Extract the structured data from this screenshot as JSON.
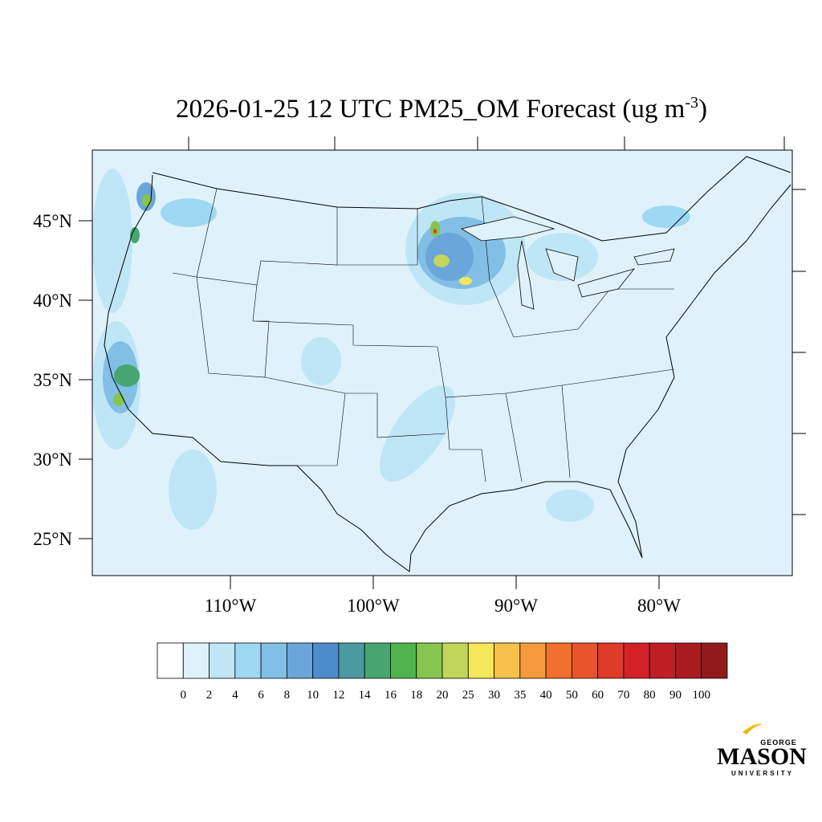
{
  "title": {
    "main": "2026-01-25 12 UTC PM25_OM Forecast (ug m",
    "superscript": "-3",
    "close": ")"
  },
  "map": {
    "lat_ticks": [
      {
        "value": 45,
        "label": "45°N"
      },
      {
        "value": 40,
        "label": "40°N"
      },
      {
        "value": 35,
        "label": "35°N"
      },
      {
        "value": 30,
        "label": "30°N"
      },
      {
        "value": 25,
        "label": "25°N"
      }
    ],
    "lon_ticks": [
      {
        "value": -110,
        "label": "110°W"
      },
      {
        "value": -100,
        "label": "100°W"
      },
      {
        "value": -90,
        "label": "90°W"
      },
      {
        "value": -80,
        "label": "80°W"
      }
    ]
  },
  "colorbar": {
    "levels": [
      0,
      2,
      4,
      6,
      8,
      10,
      12,
      14,
      16,
      18,
      20,
      25,
      30,
      35,
      40,
      50,
      60,
      70,
      80,
      90,
      100
    ],
    "colors": [
      "#ffffff",
      "#dff2fb",
      "#bfe6f7",
      "#9fd8f3",
      "#82bfe6",
      "#6aa6da",
      "#4d8ccb",
      "#4b9a9f",
      "#45a672",
      "#4db34a",
      "#87c54e",
      "#c2d65a",
      "#f6e65a",
      "#f7c04a",
      "#f59a3c",
      "#f26f2d",
      "#ea542a",
      "#e03a28",
      "#d42128",
      "#bf1e24",
      "#aa1b20",
      "#921a1b"
    ]
  },
  "logo": {
    "top": "GEORGE",
    "main": "MASON",
    "bottom": "UNIVERSITY"
  }
}
